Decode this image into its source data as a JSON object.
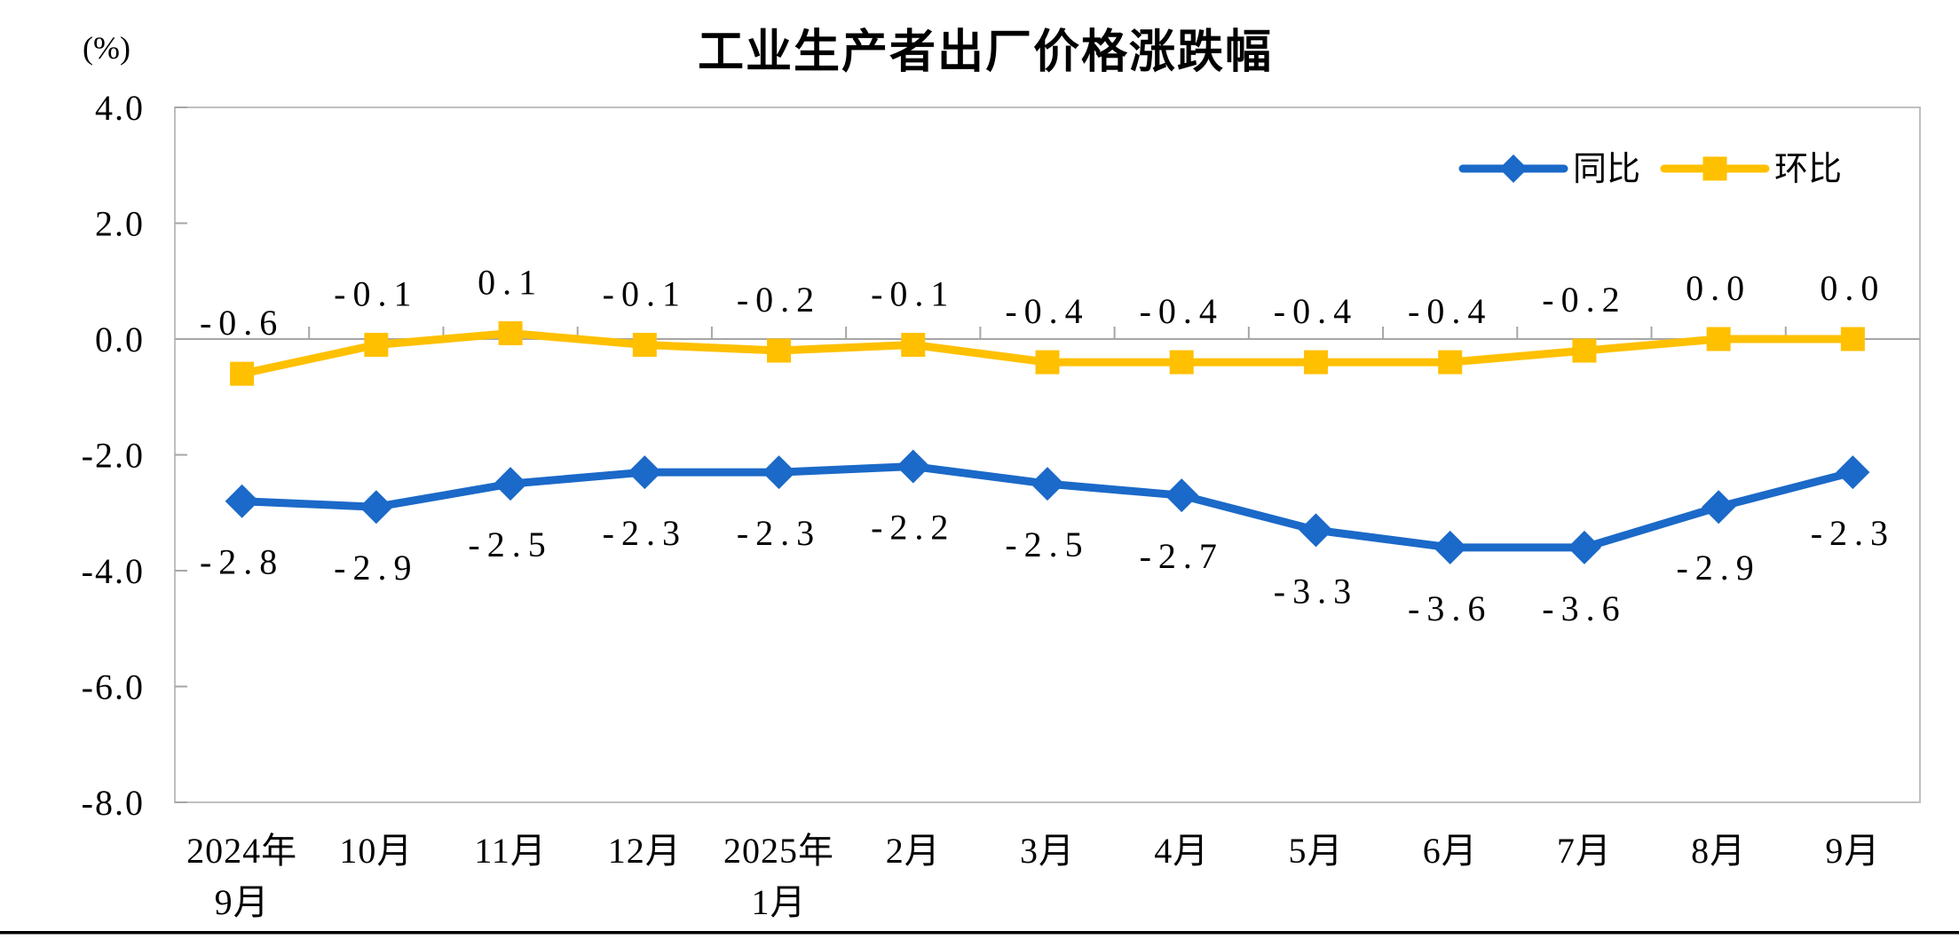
{
  "page": {
    "background": "#FFFFFF",
    "bottom_rule_color": "#000000"
  },
  "chart_data": {
    "type": "line",
    "title": "工业生产者出厂价格涨跌幅",
    "unit_label": "(%)",
    "categories": [
      [
        "2024年",
        "9月"
      ],
      [
        "10月"
      ],
      [
        "11月"
      ],
      [
        "12月"
      ],
      [
        "2025年",
        "1月"
      ],
      [
        "2月"
      ],
      [
        "3月"
      ],
      [
        "4月"
      ],
      [
        "5月"
      ],
      [
        "6月"
      ],
      [
        "7月"
      ],
      [
        "8月"
      ],
      [
        "9月"
      ]
    ],
    "series": [
      {
        "name": "同比",
        "marker": "diamond",
        "color": "#1B69C8",
        "label_position": "below",
        "values": [
          -2.8,
          -2.9,
          -2.5,
          -2.3,
          -2.3,
          -2.2,
          -2.5,
          -2.7,
          -3.3,
          -3.6,
          -3.6,
          -2.9,
          -2.3
        ],
        "labels": [
          "-2.8",
          "-2.9",
          "-2.5",
          "-2.3",
          "-2.3",
          "-2.2",
          "-2.5",
          "-2.7",
          "-3.3",
          "-3.6",
          "-3.6",
          "-2.9",
          "-2.3"
        ]
      },
      {
        "name": "环比",
        "marker": "square",
        "color": "#FFC000",
        "label_position": "above",
        "values": [
          -0.6,
          -0.1,
          0.1,
          -0.1,
          -0.2,
          -0.1,
          -0.4,
          -0.4,
          -0.4,
          -0.4,
          -0.2,
          0.0,
          0.0
        ],
        "labels": [
          "-0.6",
          "-0.1",
          "0.1",
          "-0.1",
          "-0.2",
          "-0.1",
          "-0.4",
          "-0.4",
          "-0.4",
          "-0.4",
          "-0.2",
          "0.0",
          "0.0"
        ]
      }
    ],
    "ylim": [
      -8.0,
      4.0
    ],
    "yticks": [
      "4.0",
      "2.0",
      "0.0",
      "-2.0",
      "-4.0",
      "-6.0",
      "-8.0"
    ],
    "ytick_values": [
      4,
      2,
      0,
      -2,
      -4,
      -6,
      -8
    ],
    "grid": false,
    "legend_position": "top-right",
    "axis_color": "#A6A6A6",
    "frame_color": "#BFBFBF",
    "text_color": "#000000"
  }
}
